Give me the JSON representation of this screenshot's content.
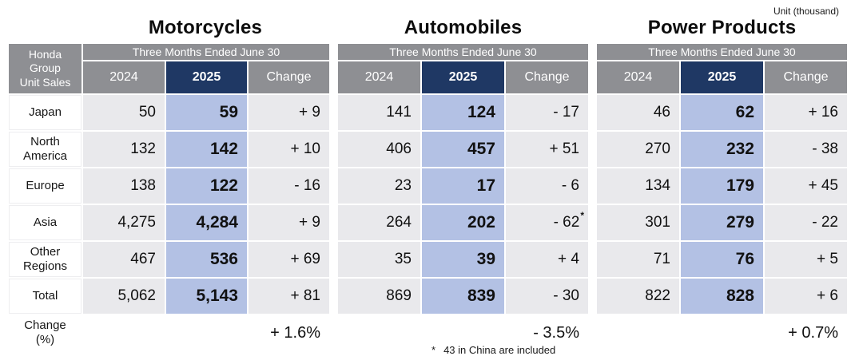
{
  "page": {
    "unit_label": "Unit (thousand)"
  },
  "header": {
    "row_title_lines": [
      "Honda",
      "Group",
      "Unit Sales"
    ],
    "period": "Three Months Ended June 30",
    "years": {
      "y2024": "2024",
      "y2025": "2025",
      "change": "Change"
    }
  },
  "regions": [
    "Japan",
    "North America",
    "Europe",
    "Asia",
    "Other Regions",
    "Total"
  ],
  "change_row_label": {
    "line1": "Change",
    "line2": "(%)"
  },
  "tables": [
    {
      "title": "Motorcycles",
      "rows": [
        [
          "50",
          "59",
          "+ 9"
        ],
        [
          "132",
          "142",
          "+ 10"
        ],
        [
          "138",
          "122",
          "- 16"
        ],
        [
          "4,275",
          "4,284",
          "+ 9"
        ],
        [
          "467",
          "536",
          "+ 69"
        ],
        [
          "5,062",
          "5,143",
          "+ 81"
        ]
      ],
      "change_pct": "+ 1.6%"
    },
    {
      "title": "Automobiles",
      "rows": [
        [
          "141",
          "124",
          "- 17"
        ],
        [
          "406",
          "457",
          "+ 51"
        ],
        [
          "23",
          "17",
          "- 6"
        ],
        [
          "264",
          "202",
          "- 62"
        ],
        [
          "35",
          "39",
          "+ 4"
        ],
        [
          "869",
          "839",
          "- 30"
        ]
      ],
      "change_pct": "- 3.5%"
    },
    {
      "title": "Power Products",
      "rows": [
        [
          "46",
          "62",
          "+ 16"
        ],
        [
          "270",
          "232",
          "- 38"
        ],
        [
          "134",
          "179",
          "+ 45"
        ],
        [
          "301",
          "279",
          "- 22"
        ],
        [
          "71",
          "76",
          "+ 5"
        ],
        [
          "822",
          "828",
          "+ 6"
        ]
      ],
      "change_pct": "+ 0.7%"
    }
  ],
  "footnote": {
    "marker": "*",
    "text": "43 in China are included"
  },
  "colors": {
    "header_gray": "#8e8f93",
    "navy_2025": "#1f3864",
    "blue_2025_cell": "#b3c1e4",
    "gray_cell": "#e9e9ec"
  }
}
